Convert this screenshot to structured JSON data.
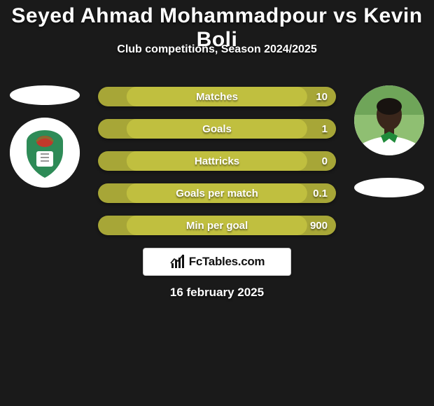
{
  "background_color": "#1a1a1a",
  "title": "Seyed Ahmad Mohammadpour vs Kevin Boli",
  "title_color": "#ffffff",
  "title_fontsize": 30,
  "subtitle": "Club competitions, Season 2024/2025",
  "subtitle_color": "#ffffff",
  "subtitle_fontsize": 16,
  "brand_text": "FcTables.com",
  "date_text": "16 february 2025",
  "bars": {
    "outer_color": "#a7a637",
    "inner_color": "#c0bf3f",
    "text_color": "#ffffff",
    "items": [
      {
        "label": "Matches",
        "left": "",
        "right": "10",
        "fill_pct": 76
      },
      {
        "label": "Goals",
        "left": "",
        "right": "1",
        "fill_pct": 76
      },
      {
        "label": "Hattricks",
        "left": "",
        "right": "0",
        "fill_pct": 76
      },
      {
        "label": "Goals per match",
        "left": "",
        "right": "0.1",
        "fill_pct": 76
      },
      {
        "label": "Min per goal",
        "left": "",
        "right": "900",
        "fill_pct": 76
      }
    ]
  },
  "left_player": {
    "name": "Seyed Ahmad Mohammadpour",
    "badge_bg": "#ffffff",
    "badge_accent": "#2e8b57",
    "badge_accent2": "#c0392b"
  },
  "right_player": {
    "name": "Kevin Boli",
    "photo_bg": "#8fbf72",
    "skin_color": "#3a261b",
    "shirt_color": "#ffffff",
    "shirt_collar": "#1f8a3a"
  }
}
